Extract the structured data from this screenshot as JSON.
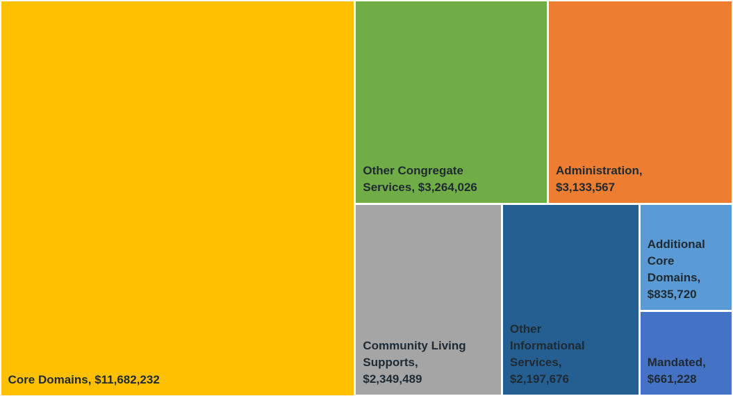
{
  "chart_data": {
    "type": "treemap",
    "title": "",
    "items": [
      {
        "label": "Core Domains,  $11,682,232",
        "name": "Core Domains",
        "value": 11682232,
        "color": "#ffc000"
      },
      {
        "label": "Other Congregate\nServices,  $3,264,026",
        "name": "Other Congregate Services",
        "value": 3264026,
        "color": "#70ad47"
      },
      {
        "label": "Administration,\n$3,133,567",
        "name": "Administration",
        "value": 3133567,
        "color": "#ed7d31"
      },
      {
        "label": "Community Living\nSupports,\n$2,349,489",
        "name": "Community Living Supports",
        "value": 2349489,
        "color": "#a5a5a5"
      },
      {
        "label": "Other\nInformational\nServices,\n$2,197,676",
        "name": "Other Informational Services",
        "value": 2197676,
        "color": "#255e91"
      },
      {
        "label": "Additional\nCore\nDomains,\n$835,720",
        "name": "Additional Core Domains",
        "value": 835720,
        "color": "#5b9bd5"
      },
      {
        "label": "Mandated,\n$661,228",
        "name": "Mandated",
        "value": 661228,
        "color": "#4472c4"
      }
    ]
  }
}
